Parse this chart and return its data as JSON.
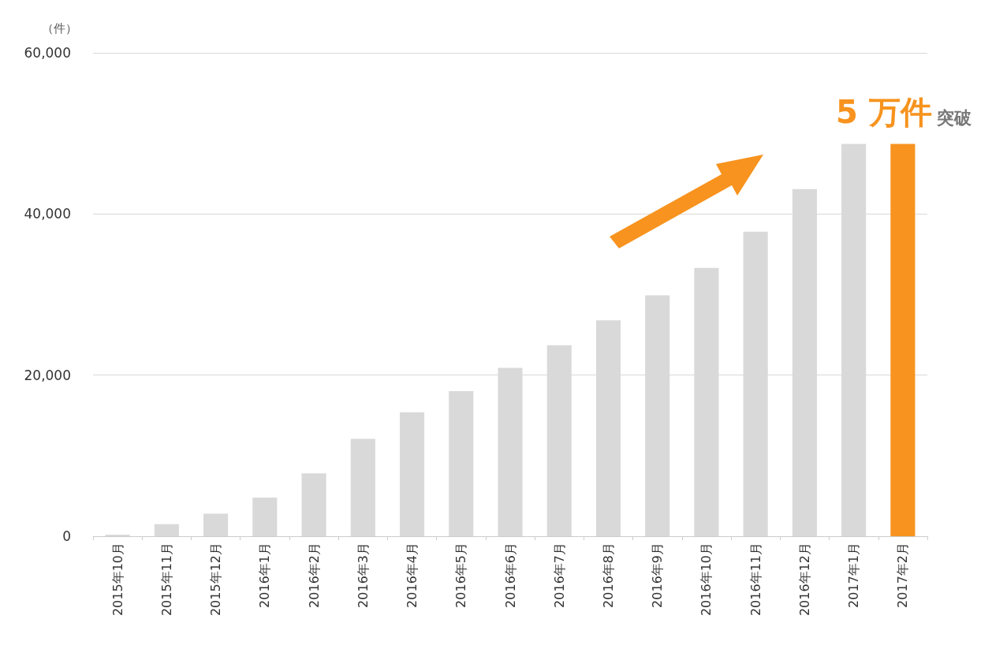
{
  "chart_data": {
    "type": "bar",
    "ylabel": "（件）",
    "categories": [
      "2015年10月",
      "2015年11月",
      "2015年12月",
      "2016年1月",
      "2016年2月",
      "2016年3月",
      "2016年4月",
      "2016年5月",
      "2016年6月",
      "2016年7月",
      "2016年8月",
      "2016年9月",
      "2016年10月",
      "2016年11月",
      "2016年12月",
      "2017年1月",
      "2017年2月"
    ],
    "values": [
      200,
      1500,
      2800,
      4800,
      7800,
      12100,
      15400,
      18000,
      20900,
      23700,
      26800,
      29900,
      33300,
      37800,
      43100,
      48700,
      48700
    ],
    "colors": [
      "#d9d9d9",
      "#d9d9d9",
      "#d9d9d9",
      "#d9d9d9",
      "#d9d9d9",
      "#d9d9d9",
      "#d9d9d9",
      "#d9d9d9",
      "#d9d9d9",
      "#d9d9d9",
      "#d9d9d9",
      "#d9d9d9",
      "#d9d9d9",
      "#d9d9d9",
      "#d9d9d9",
      "#d9d9d9",
      "#f7931e"
    ],
    "ylim": [
      0,
      60000
    ],
    "yticks": [
      0,
      {
        "value": 20000,
        "label": "20,000"
      },
      {
        "value": 40000,
        "label": "40,000"
      },
      {
        "value": 60000,
        "label": "60,000"
      }
    ],
    "grid": "y",
    "annotations": [
      "5 万件",
      "突破"
    ]
  }
}
